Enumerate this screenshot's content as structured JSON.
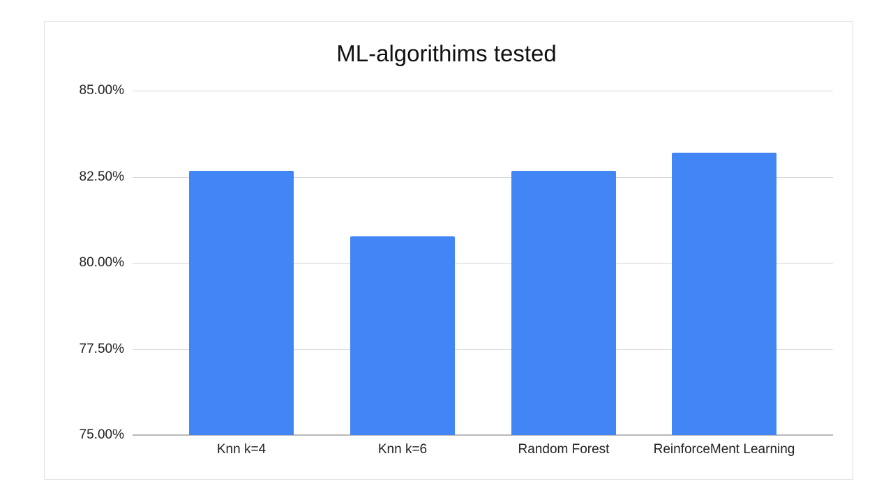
{
  "chart_data": {
    "type": "bar",
    "title": "ML-algorithims tested",
    "xlabel": "",
    "ylabel": "",
    "categories": [
      "Knn k=4",
      "Knn k=6",
      "Random Forest",
      "ReinforceMent Learning"
    ],
    "values": [
      82.68,
      80.77,
      82.68,
      83.19
    ],
    "value_format": "percent",
    "ylim": [
      75,
      85
    ],
    "yticks": [
      "85.00%",
      "82.50%",
      "80.00%",
      "77.50%",
      "75.00%"
    ],
    "ytick_values": [
      85,
      82.5,
      80,
      77.5,
      75
    ],
    "grid": true,
    "legend": "none",
    "bar_color": "#4285f4"
  }
}
